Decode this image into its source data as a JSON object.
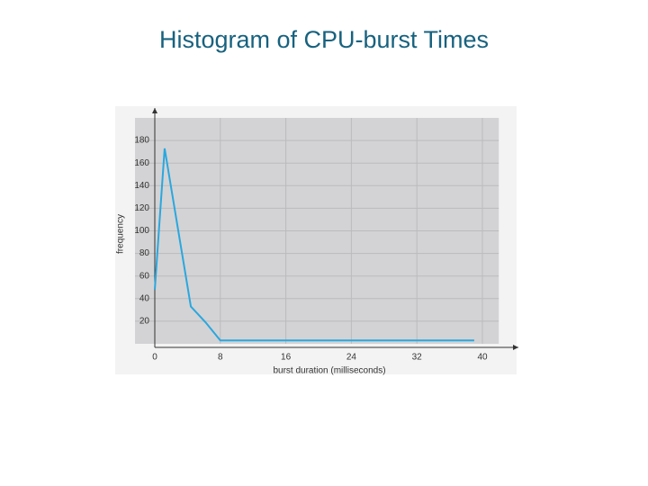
{
  "chart_data": {
    "type": "line",
    "title": "Histogram of CPU-burst Times",
    "x_label": "burst duration (milliseconds)",
    "y_label": "frequency",
    "x": [
      0,
      1.2,
      4.4,
      6.2,
      8,
      39
    ],
    "values": [
      48,
      173,
      33,
      19,
      3,
      3
    ],
    "color": "#2aa7de",
    "xlim": [
      0,
      42
    ],
    "ylim": [
      0,
      200
    ],
    "xticks": [
      0,
      8,
      16,
      24,
      32,
      40
    ],
    "yticks": [
      20,
      40,
      60,
      80,
      100,
      120,
      140,
      160,
      180
    ],
    "grid": true
  }
}
